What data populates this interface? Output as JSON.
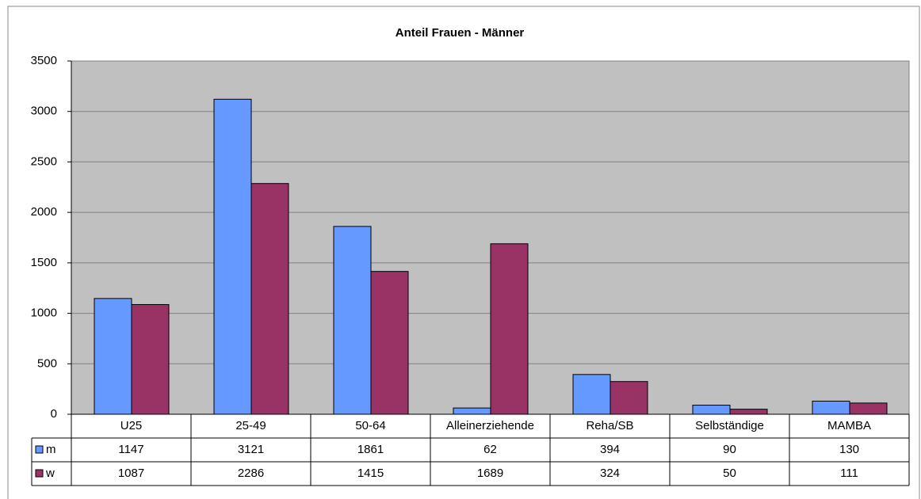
{
  "chart_data": {
    "type": "bar",
    "title": "Anteil Frauen - Männer",
    "categories": [
      "U25",
      "25-49",
      "50-64",
      "Alleinerziehende",
      "Reha/SB",
      "Selbständige",
      "MAMBA"
    ],
    "series": [
      {
        "name": "m",
        "color": "#6699ff",
        "values": [
          1147,
          3121,
          1861,
          62,
          394,
          90,
          130
        ]
      },
      {
        "name": "w",
        "color": "#993366",
        "values": [
          1087,
          2286,
          1415,
          1689,
          324,
          50,
          111
        ]
      }
    ],
    "ylim": [
      0,
      3500
    ],
    "yticks": [
      0,
      500,
      1000,
      1500,
      2000,
      2500,
      3000,
      3500
    ],
    "grid": true
  }
}
